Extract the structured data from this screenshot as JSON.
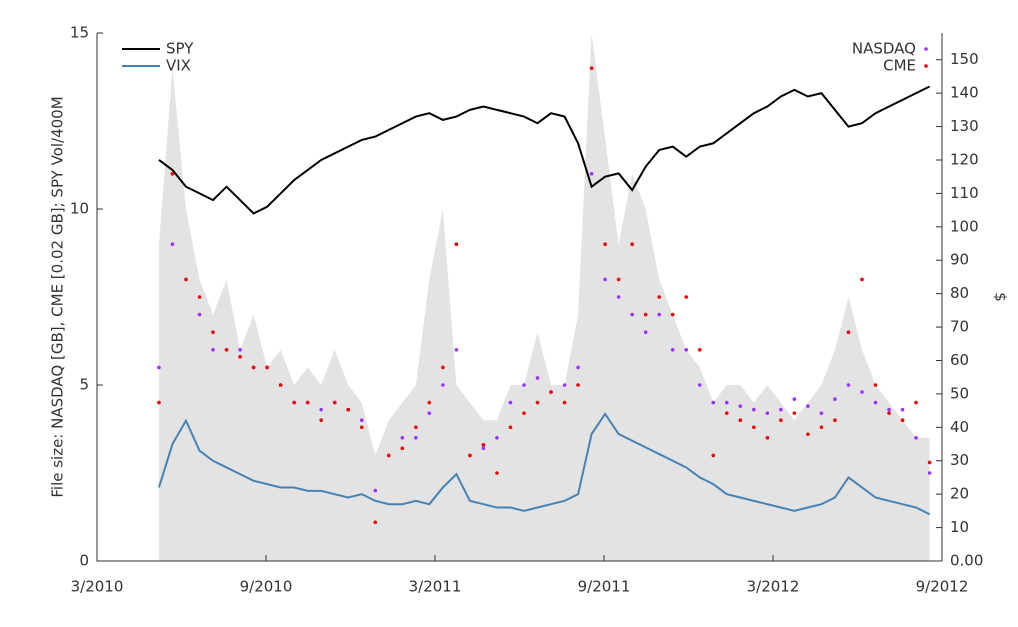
{
  "chart_data": {
    "type": "timeseries",
    "ylabel": "File size: NASDAQ [GB], CME [0.02 GB]; SPY Vol/400M",
    "y2label": "$",
    "xlim": [
      2010.1667,
      2012.6667
    ],
    "xticks": [
      {
        "value": 2010.1667,
        "label": "3/2010"
      },
      {
        "value": 2010.6667,
        "label": "9/2010"
      },
      {
        "value": 2011.1667,
        "label": "3/2011"
      },
      {
        "value": 2011.6667,
        "label": "9/2011"
      },
      {
        "value": 2012.1667,
        "label": "3/2012"
      },
      {
        "value": 2012.6667,
        "label": "9/2012"
      }
    ],
    "ylim": [
      0,
      15
    ],
    "yticks": [
      0,
      5,
      10,
      15
    ],
    "y2lim": [
      0,
      158
    ],
    "y2ticks": [
      {
        "value": 0,
        "label": "0.00"
      },
      10,
      20,
      30,
      40,
      50,
      60,
      70,
      80,
      90,
      100,
      110,
      120,
      130,
      140,
      150
    ],
    "x": [
      2010.35,
      2010.39,
      2010.43,
      2010.47,
      2010.51,
      2010.55,
      2010.59,
      2010.63,
      2010.67,
      2010.71,
      2010.75,
      2010.79,
      2010.83,
      2010.87,
      2010.91,
      2010.95,
      2010.99,
      2011.03,
      2011.07,
      2011.11,
      2011.15,
      2011.19,
      2011.23,
      2011.27,
      2011.31,
      2011.35,
      2011.39,
      2011.43,
      2011.47,
      2011.51,
      2011.55,
      2011.59,
      2011.63,
      2011.67,
      2011.71,
      2011.75,
      2011.79,
      2011.83,
      2011.87,
      2011.91,
      2011.95,
      2011.99,
      2012.03,
      2012.07,
      2012.11,
      2012.15,
      2012.19,
      2012.23,
      2012.27,
      2012.31,
      2012.35,
      2012.39,
      2012.43,
      2012.47,
      2012.51,
      2012.55,
      2012.59,
      2012.63
    ],
    "series": [
      {
        "style": "area",
        "color": "#e3e3e3",
        "values": [
          9,
          14,
          10,
          8,
          7,
          8,
          6,
          7,
          5.5,
          6,
          5,
          5.5,
          5,
          6,
          5,
          4.5,
          3,
          4,
          4.5,
          5,
          8,
          10,
          5,
          4.5,
          4,
          4,
          5,
          5,
          6.5,
          5,
          5,
          7,
          15,
          12,
          9,
          11,
          10,
          8,
          7,
          6,
          5.5,
          4.5,
          5,
          5,
          4.5,
          5,
          4.5,
          4,
          4.5,
          5,
          6,
          7.5,
          6,
          5,
          4.5,
          4,
          3.5,
          3.5
        ]
      },
      {
        "name": "NASDAQ",
        "style": "points",
        "legend": "upper right",
        "color": "#9b30ff",
        "values": [
          5.5,
          9,
          8,
          7,
          6,
          6,
          6,
          5.5,
          5.5,
          5,
          4.5,
          4.5,
          4.3,
          4.5,
          4.3,
          4,
          2,
          3,
          3.5,
          3.5,
          4.2,
          5,
          6,
          3,
          3.2,
          3.5,
          4.5,
          5,
          5.2,
          4.8,
          5,
          5.5,
          11,
          8,
          7.5,
          7,
          6.5,
          7,
          6,
          6,
          5,
          4.5,
          4.5,
          4.4,
          4.3,
          4.2,
          4.3,
          4.6,
          4.4,
          4.2,
          4.6,
          5,
          4.8,
          4.5,
          4.3,
          4.3,
          3.5,
          2.5
        ]
      },
      {
        "name": "CME",
        "style": "points",
        "legend": "upper right",
        "color": "#ee0000",
        "values": [
          4.5,
          11,
          8,
          7.5,
          6.5,
          6,
          5.8,
          5.5,
          5.5,
          5,
          4.5,
          4.5,
          4,
          4.5,
          4.3,
          3.8,
          1.1,
          3,
          3.2,
          3.8,
          4.5,
          5.5,
          9,
          3,
          3.3,
          2.5,
          3.8,
          4.2,
          4.5,
          4.8,
          4.5,
          5,
          14,
          9,
          8,
          9,
          7,
          7.5,
          7,
          7.5,
          6,
          3,
          4.2,
          4,
          3.8,
          3.5,
          4,
          4.2,
          3.6,
          3.8,
          4,
          6.5,
          8,
          5,
          4.2,
          4,
          4.5,
          2.8
        ]
      },
      {
        "name": "SPY",
        "style": "line",
        "legend": "upper left",
        "axis": "y2",
        "color": "#000000",
        "values": [
          120,
          117,
          112,
          110,
          108,
          112,
          108,
          104,
          106,
          110,
          114,
          117,
          120,
          122,
          124,
          126,
          127,
          129,
          131,
          133,
          134,
          132,
          133,
          135,
          136,
          135,
          134,
          133,
          131,
          134,
          133,
          125,
          112,
          115,
          116,
          111,
          118,
          123,
          124,
          121,
          124,
          125,
          128,
          131,
          134,
          136,
          139,
          141,
          139,
          140,
          135,
          130,
          131,
          134,
          136,
          138,
          140,
          142
        ]
      },
      {
        "name": "VIX",
        "style": "line",
        "legend": "upper left",
        "axis": "y2",
        "color": "#4682b4",
        "values": [
          22,
          35,
          42,
          33,
          30,
          28,
          26,
          24,
          23,
          22,
          22,
          21,
          21,
          20,
          19,
          20,
          18,
          17,
          17,
          18,
          17,
          22,
          26,
          18,
          17,
          16,
          16,
          15,
          16,
          17,
          18,
          20,
          38,
          44,
          38,
          36,
          34,
          32,
          30,
          28,
          25,
          23,
          20,
          19,
          18,
          17,
          16,
          15,
          16,
          17,
          19,
          25,
          22,
          19,
          18,
          17,
          16,
          14
        ]
      }
    ]
  }
}
